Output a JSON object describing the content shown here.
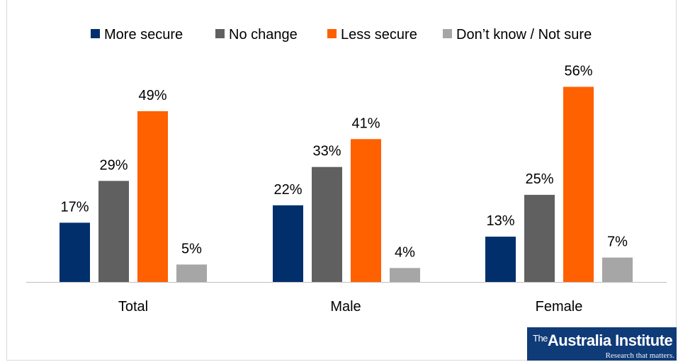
{
  "chart_data": {
    "type": "bar",
    "title": "",
    "xlabel": "",
    "ylabel": "",
    "categories": [
      "Total",
      "Male",
      "Female"
    ],
    "series": [
      {
        "name": "More secure",
        "color": "#002f6c",
        "values": [
          17,
          22,
          13
        ]
      },
      {
        "name": "No change",
        "color": "#606060",
        "values": [
          29,
          33,
          25
        ]
      },
      {
        "name": "Less secure",
        "color": "#ff6000",
        "values": [
          49,
          41,
          56
        ]
      },
      {
        "name": "Don’t know / Not sure",
        "color": "#a6a6a6",
        "values": [
          5,
          4,
          7
        ]
      }
    ],
    "value_suffix": "%",
    "ylim": [
      0,
      60
    ],
    "grid": false,
    "legend_position": "top"
  },
  "logo": {
    "name": "The Australia Institute",
    "tagline": "Research that matters."
  }
}
